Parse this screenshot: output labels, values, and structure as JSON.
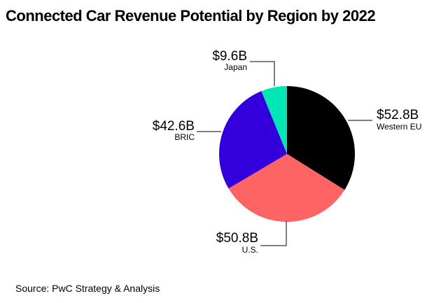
{
  "chart_data": {
    "type": "pie",
    "title": "Connected Car Revenue Potential by Region by 2022",
    "unit": "$B",
    "slices": [
      {
        "label": "Western EU",
        "value": 52.8,
        "value_label": "$52.8B",
        "color": "#000000"
      },
      {
        "label": "U.S.",
        "value": 50.8,
        "value_label": "$50.8B",
        "color": "#ff6464"
      },
      {
        "label": "BRIC",
        "value": 42.6,
        "value_label": "$42.6B",
        "color": "#3300dd"
      },
      {
        "label": "Japan",
        "value": 9.6,
        "value_label": "$9.6B",
        "color": "#00e6b4"
      }
    ],
    "start": "12 o'clock",
    "direction": "clockwise"
  },
  "source": "Source: PwC Strategy & Analysis"
}
